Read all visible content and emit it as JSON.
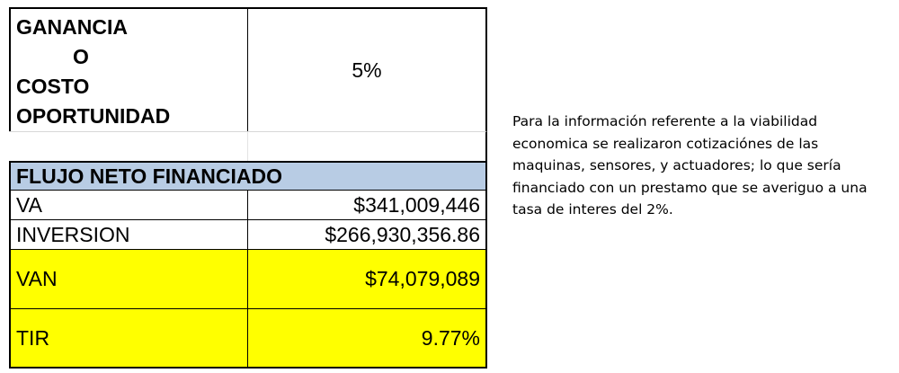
{
  "table": {
    "ganancia_lines": [
      "GANANCIA",
      "O",
      "COSTO",
      "OPORTUNIDAD"
    ],
    "rate_value": "5%",
    "section_header": "FLUJO NETO FINANCIADO",
    "rows": [
      {
        "label": "VA",
        "value": "$341,009,446"
      },
      {
        "label": "INVERSION",
        "value": "$266,930,356.86"
      },
      {
        "label": "VAN",
        "value": "$74,079,089"
      },
      {
        "label": "TIR",
        "value": "9.77%"
      }
    ],
    "colors": {
      "header_background": "#b8cce4",
      "highlight_background": "#ffff00"
    }
  },
  "note": {
    "text": "Para la información referente a la viabilidad economica se realizaron cotizaciónes de las maquinas, sensores, y actuadores; lo que sería financiado con un prestamo que se averiguo a una tasa de interes del 2%."
  }
}
